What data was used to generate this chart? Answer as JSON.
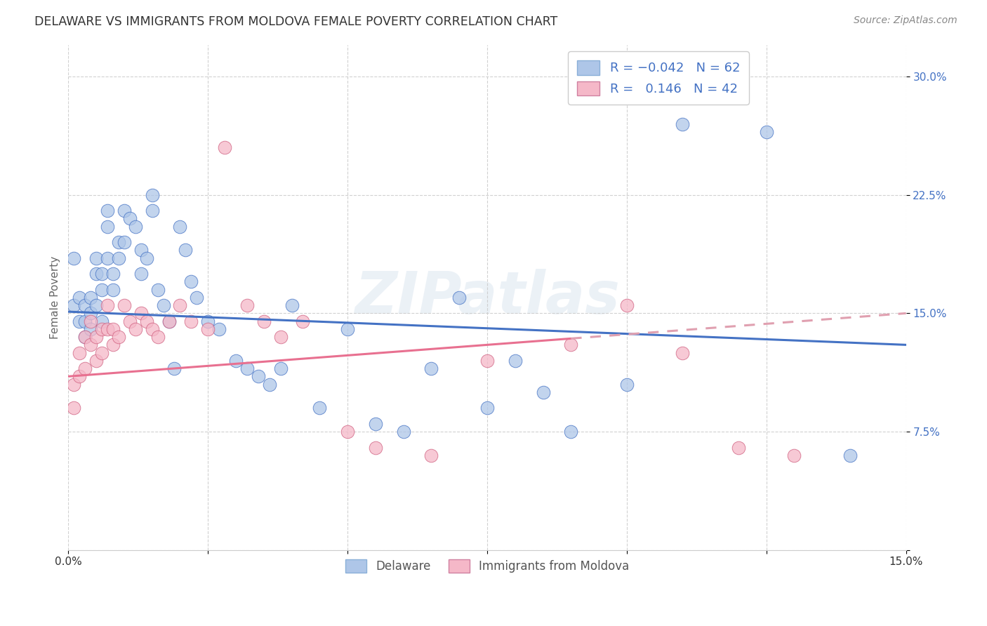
{
  "title": "DELAWARE VS IMMIGRANTS FROM MOLDOVA FEMALE POVERTY CORRELATION CHART",
  "source": "Source: ZipAtlas.com",
  "ylabel": "Female Poverty",
  "xlim": [
    0.0,
    0.15
  ],
  "ylim": [
    0.0,
    0.32
  ],
  "legend_R1": "-0.042",
  "legend_N1": "62",
  "legend_R2": "0.146",
  "legend_N2": "42",
  "color_blue": "#aec6e8",
  "color_pink": "#f5b8c8",
  "line_blue": "#4472c4",
  "line_pink_solid": "#e87090",
  "line_pink_dash": "#e0a0b0",
  "watermark": "ZIPatlas",
  "blue_trend_start": 0.151,
  "blue_trend_end": 0.13,
  "pink_trend_start": 0.11,
  "pink_trend_end": 0.15,
  "blue_x": [
    0.001,
    0.001,
    0.002,
    0.002,
    0.003,
    0.003,
    0.003,
    0.004,
    0.004,
    0.004,
    0.005,
    0.005,
    0.005,
    0.006,
    0.006,
    0.006,
    0.007,
    0.007,
    0.007,
    0.008,
    0.008,
    0.009,
    0.009,
    0.01,
    0.01,
    0.011,
    0.012,
    0.013,
    0.013,
    0.014,
    0.015,
    0.015,
    0.016,
    0.017,
    0.018,
    0.019,
    0.02,
    0.021,
    0.022,
    0.023,
    0.025,
    0.027,
    0.03,
    0.032,
    0.034,
    0.036,
    0.038,
    0.04,
    0.045,
    0.05,
    0.055,
    0.06,
    0.065,
    0.07,
    0.075,
    0.08,
    0.085,
    0.09,
    0.1,
    0.11,
    0.125,
    0.14
  ],
  "blue_y": [
    0.185,
    0.155,
    0.16,
    0.145,
    0.155,
    0.145,
    0.135,
    0.16,
    0.15,
    0.14,
    0.185,
    0.175,
    0.155,
    0.175,
    0.165,
    0.145,
    0.215,
    0.205,
    0.185,
    0.175,
    0.165,
    0.195,
    0.185,
    0.215,
    0.195,
    0.21,
    0.205,
    0.19,
    0.175,
    0.185,
    0.225,
    0.215,
    0.165,
    0.155,
    0.145,
    0.115,
    0.205,
    0.19,
    0.17,
    0.16,
    0.145,
    0.14,
    0.12,
    0.115,
    0.11,
    0.105,
    0.115,
    0.155,
    0.09,
    0.14,
    0.08,
    0.075,
    0.115,
    0.16,
    0.09,
    0.12,
    0.1,
    0.075,
    0.105,
    0.27,
    0.265,
    0.06
  ],
  "pink_x": [
    0.001,
    0.001,
    0.002,
    0.002,
    0.003,
    0.003,
    0.004,
    0.004,
    0.005,
    0.005,
    0.006,
    0.006,
    0.007,
    0.007,
    0.008,
    0.008,
    0.009,
    0.01,
    0.011,
    0.012,
    0.013,
    0.014,
    0.015,
    0.016,
    0.018,
    0.02,
    0.022,
    0.025,
    0.028,
    0.032,
    0.035,
    0.038,
    0.042,
    0.05,
    0.055,
    0.065,
    0.075,
    0.09,
    0.1,
    0.11,
    0.12,
    0.13
  ],
  "pink_y": [
    0.105,
    0.09,
    0.125,
    0.11,
    0.135,
    0.115,
    0.145,
    0.13,
    0.135,
    0.12,
    0.14,
    0.125,
    0.155,
    0.14,
    0.14,
    0.13,
    0.135,
    0.155,
    0.145,
    0.14,
    0.15,
    0.145,
    0.14,
    0.135,
    0.145,
    0.155,
    0.145,
    0.14,
    0.255,
    0.155,
    0.145,
    0.135,
    0.145,
    0.075,
    0.065,
    0.06,
    0.12,
    0.13,
    0.155,
    0.125,
    0.065,
    0.06
  ]
}
